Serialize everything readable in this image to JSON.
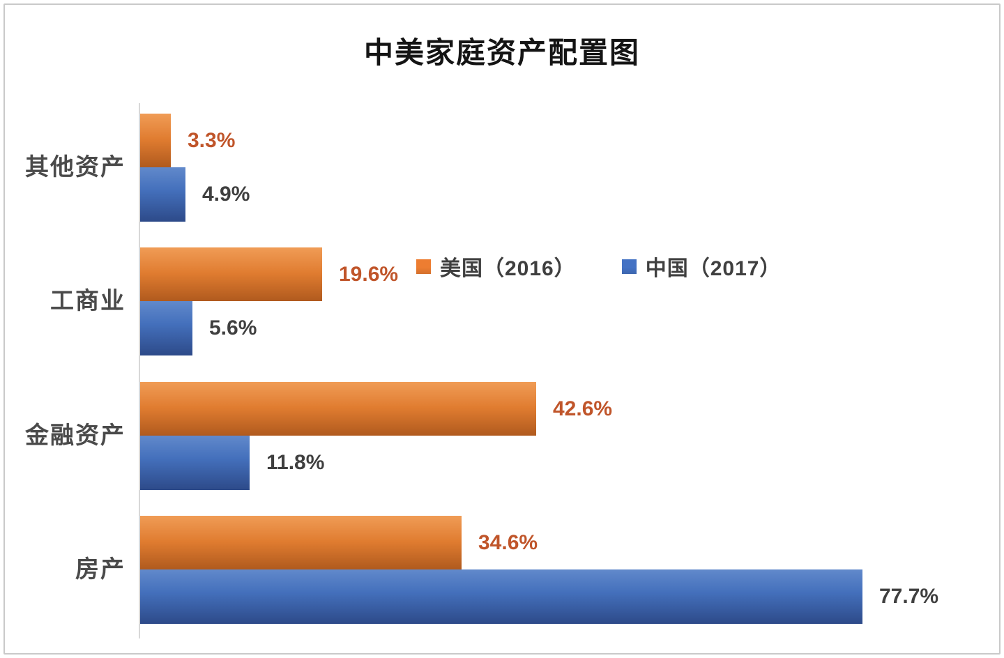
{
  "chart_data": {
    "type": "bar",
    "orientation": "horizontal",
    "title": "中美家庭资产配置图",
    "categories": [
      "其他资产",
      "工商业",
      "金融资产",
      "房产"
    ],
    "series": [
      {
        "name": "美国（2016）",
        "values": [
          3.3,
          19.6,
          42.6,
          34.6
        ],
        "color": "#ED7D31",
        "label_color": "#C0552A"
      },
      {
        "name": "中国（2017）",
        "values": [
          4.9,
          5.6,
          11.8,
          77.7
        ],
        "color": "#4472C4",
        "label_color": "#3F3F3F"
      }
    ],
    "value_suffix": "%",
    "xlim": [
      0,
      91.5
    ],
    "grid": false,
    "data_labels": true,
    "legend_position": "inside-top"
  },
  "styles": {
    "axis_color": "#D8D8D8",
    "border_color": "#C9C9C9",
    "title_color": "#141414",
    "category_label_color": "#4A4A4A"
  }
}
